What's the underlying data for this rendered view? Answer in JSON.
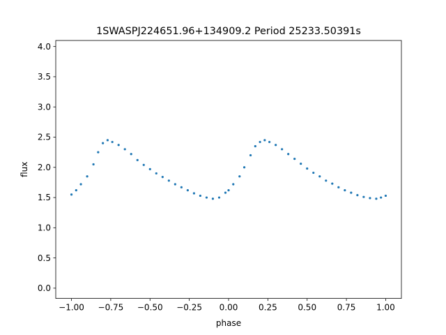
{
  "chart_data": {
    "type": "scatter",
    "title": "1SWASPJ224651.96+134909.2 Period 25233.50391s",
    "xlabel": "phase",
    "ylabel": "flux",
    "xlim": [
      -1.1,
      1.1
    ],
    "ylim": [
      -0.17,
      4.1
    ],
    "xticks": [
      -1.0,
      -0.75,
      -0.5,
      -0.25,
      0.0,
      0.25,
      0.5,
      0.75,
      1.0
    ],
    "xtick_labels": [
      "−1.00",
      "−0.75",
      "−0.50",
      "−0.25",
      "0.00",
      "0.25",
      "0.50",
      "0.75",
      "1.00"
    ],
    "yticks": [
      0.0,
      0.5,
      1.0,
      1.5,
      2.0,
      2.5,
      3.0,
      3.5,
      4.0
    ],
    "ytick_labels": [
      "0.0",
      "0.5",
      "1.0",
      "1.5",
      "2.0",
      "2.5",
      "3.0",
      "3.5",
      "4.0"
    ],
    "grid": false,
    "point_color": "#1f77b4",
    "series": [
      {
        "points": [
          [
            -1.0,
            1.55
          ],
          [
            -0.97,
            1.62
          ],
          [
            -0.94,
            1.72
          ],
          [
            -0.9,
            1.85
          ],
          [
            -0.86,
            2.05
          ],
          [
            -0.83,
            2.25
          ],
          [
            -0.8,
            2.4
          ],
          [
            -0.77,
            2.45
          ],
          [
            -0.74,
            2.42
          ],
          [
            -0.7,
            2.37
          ],
          [
            -0.66,
            2.3
          ],
          [
            -0.62,
            2.22
          ],
          [
            -0.58,
            2.12
          ],
          [
            -0.54,
            2.04
          ],
          [
            -0.5,
            1.97
          ],
          [
            -0.46,
            1.9
          ],
          [
            -0.42,
            1.84
          ],
          [
            -0.38,
            1.78
          ],
          [
            -0.34,
            1.72
          ],
          [
            -0.3,
            1.67
          ],
          [
            -0.26,
            1.62
          ],
          [
            -0.22,
            1.57
          ],
          [
            -0.18,
            1.53
          ],
          [
            -0.14,
            1.5
          ],
          [
            -0.1,
            1.48
          ],
          [
            -0.06,
            1.5
          ],
          [
            -0.02,
            1.58
          ],
          [
            0.0,
            1.62
          ],
          [
            0.03,
            1.72
          ],
          [
            0.07,
            1.85
          ],
          [
            0.1,
            2.0
          ],
          [
            0.14,
            2.2
          ],
          [
            0.17,
            2.35
          ],
          [
            0.2,
            2.42
          ],
          [
            0.23,
            2.45
          ],
          [
            0.26,
            2.42
          ],
          [
            0.3,
            2.37
          ],
          [
            0.34,
            2.3
          ],
          [
            0.38,
            2.22
          ],
          [
            0.42,
            2.14
          ],
          [
            0.46,
            2.06
          ],
          [
            0.5,
            1.98
          ],
          [
            0.54,
            1.91
          ],
          [
            0.58,
            1.85
          ],
          [
            0.62,
            1.78
          ],
          [
            0.66,
            1.73
          ],
          [
            0.7,
            1.67
          ],
          [
            0.74,
            1.62
          ],
          [
            0.78,
            1.58
          ],
          [
            0.82,
            1.54
          ],
          [
            0.86,
            1.51
          ],
          [
            0.9,
            1.49
          ],
          [
            0.94,
            1.48
          ],
          [
            0.97,
            1.5
          ],
          [
            1.0,
            1.53
          ]
        ]
      }
    ]
  }
}
